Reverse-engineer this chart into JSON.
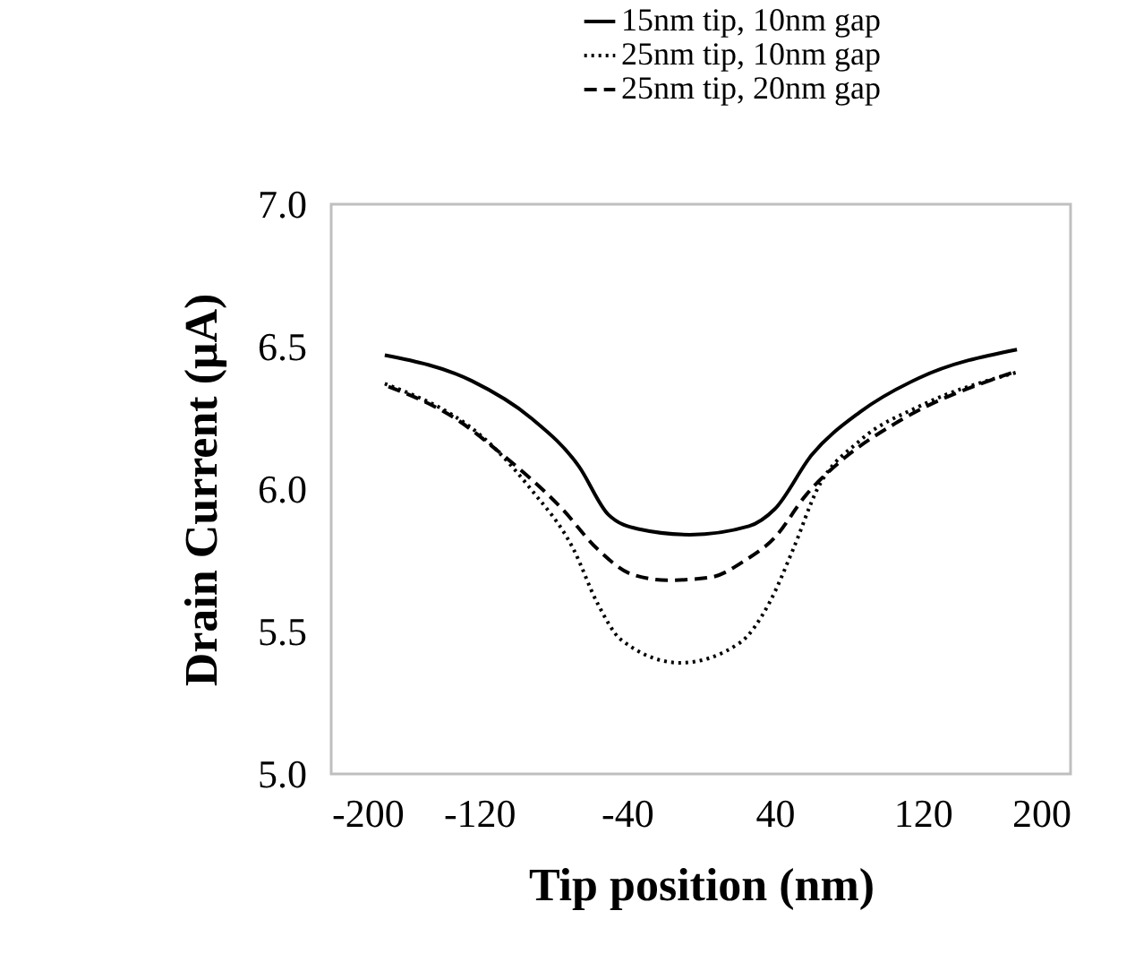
{
  "chart_data": {
    "type": "line",
    "xlabel": "Tip position (nm)",
    "ylabel": "Drain Current (μA)",
    "xlim": [
      -200,
      200
    ],
    "xticks": [
      -200,
      -120,
      -40,
      40,
      120,
      200
    ],
    "ylim": [
      5.0,
      7.0
    ],
    "yticks": [
      {
        "value": 5,
        "label": "5.0"
      },
      {
        "value": 5.5,
        "label": "5.5"
      },
      {
        "value": 6,
        "label": "6.0"
      },
      {
        "value": 6.5,
        "label": "6.5"
      },
      {
        "value": 7,
        "label": "7.0"
      }
    ],
    "grid": false,
    "legend": "top right",
    "marker": "none",
    "series": [
      {
        "name": "15nm tip, 10nm gap",
        "color": "#000000",
        "line_style": "solid",
        "x": [
          -171,
          -124,
          -92,
          -66,
          -50,
          -34,
          -6,
          26,
          40,
          60,
          86,
          118,
          171
        ],
        "values": [
          6.47,
          6.38,
          6.25,
          6.08,
          5.91,
          5.86,
          5.84,
          5.87,
          5.93,
          6.12,
          6.27,
          6.39,
          6.49
        ]
      },
      {
        "name": "25nm tip, 10nm gap",
        "color": "#000000",
        "line_style": "dotted",
        "x": [
          -171,
          -111,
          -92,
          -69,
          -56,
          -43,
          -11,
          21,
          37,
          50,
          63,
          86,
          118,
          171
        ],
        "values": [
          6.37,
          6.14,
          6.0,
          5.79,
          5.6,
          5.47,
          5.39,
          5.46,
          5.6,
          5.79,
          6.0,
          6.17,
          6.29,
          6.41
        ]
      },
      {
        "name": "25nm tip, 20nm gap",
        "color": "#000000",
        "line_style": "dashed",
        "x": [
          -169,
          -131,
          -111,
          -75,
          -56,
          -37,
          -18,
          5,
          24,
          40,
          57,
          76,
          105,
          169
        ],
        "values": [
          6.36,
          6.24,
          6.14,
          5.93,
          5.79,
          5.7,
          5.68,
          5.69,
          5.75,
          5.83,
          5.98,
          6.1,
          6.23,
          6.41
        ]
      }
    ]
  }
}
